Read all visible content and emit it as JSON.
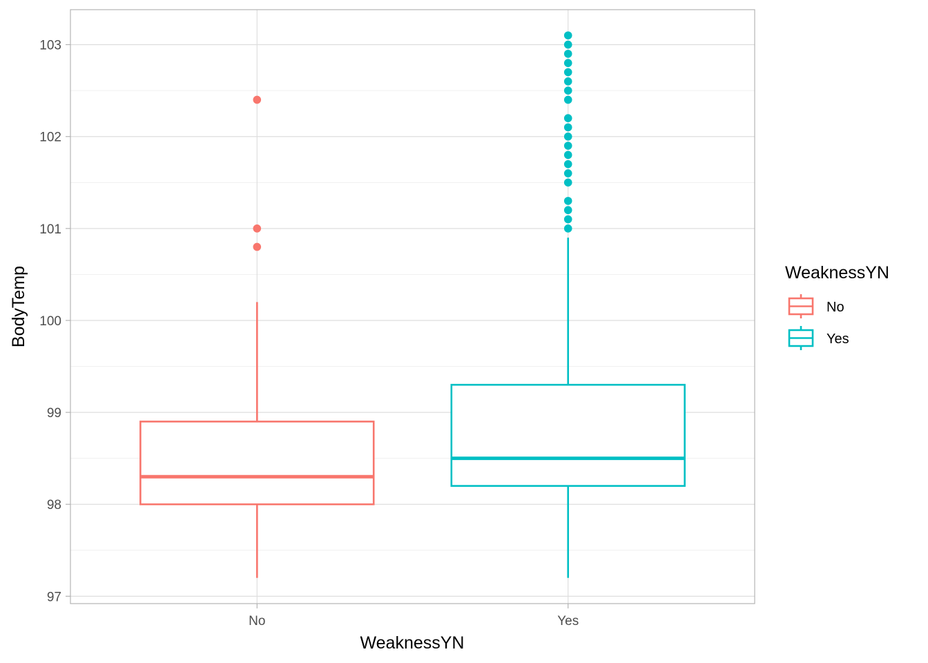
{
  "chart_data": {
    "type": "boxplot",
    "xlabel": "WeaknessYN",
    "ylabel": "BodyTemp",
    "ylim": [
      96.92,
      103.38
    ],
    "yticks": [
      97,
      98,
      99,
      100,
      101,
      102,
      103
    ],
    "categories": [
      "No",
      "Yes"
    ],
    "grid": true,
    "legend": {
      "title": "WeaknessYN",
      "position": "right",
      "entries": [
        "No",
        "Yes"
      ]
    },
    "colors": {
      "No": "#F8766D",
      "Yes": "#00BFC4"
    },
    "boxes": [
      {
        "category": "No",
        "whisker_low": 97.2,
        "q1": 98.0,
        "median": 98.3,
        "q3": 98.9,
        "whisker_high": 100.2,
        "outliers": [
          102.4,
          101.0,
          100.8
        ]
      },
      {
        "category": "Yes",
        "whisker_low": 97.2,
        "q1": 98.2,
        "median": 98.5,
        "q3": 99.3,
        "whisker_high": 100.9,
        "outliers": [
          103.1,
          103.0,
          102.9,
          102.8,
          102.7,
          102.6,
          102.5,
          102.4,
          102.2,
          102.1,
          102.0,
          101.9,
          101.8,
          101.7,
          101.6,
          101.5,
          101.3,
          101.2,
          101.1,
          101.0
        ]
      }
    ]
  }
}
